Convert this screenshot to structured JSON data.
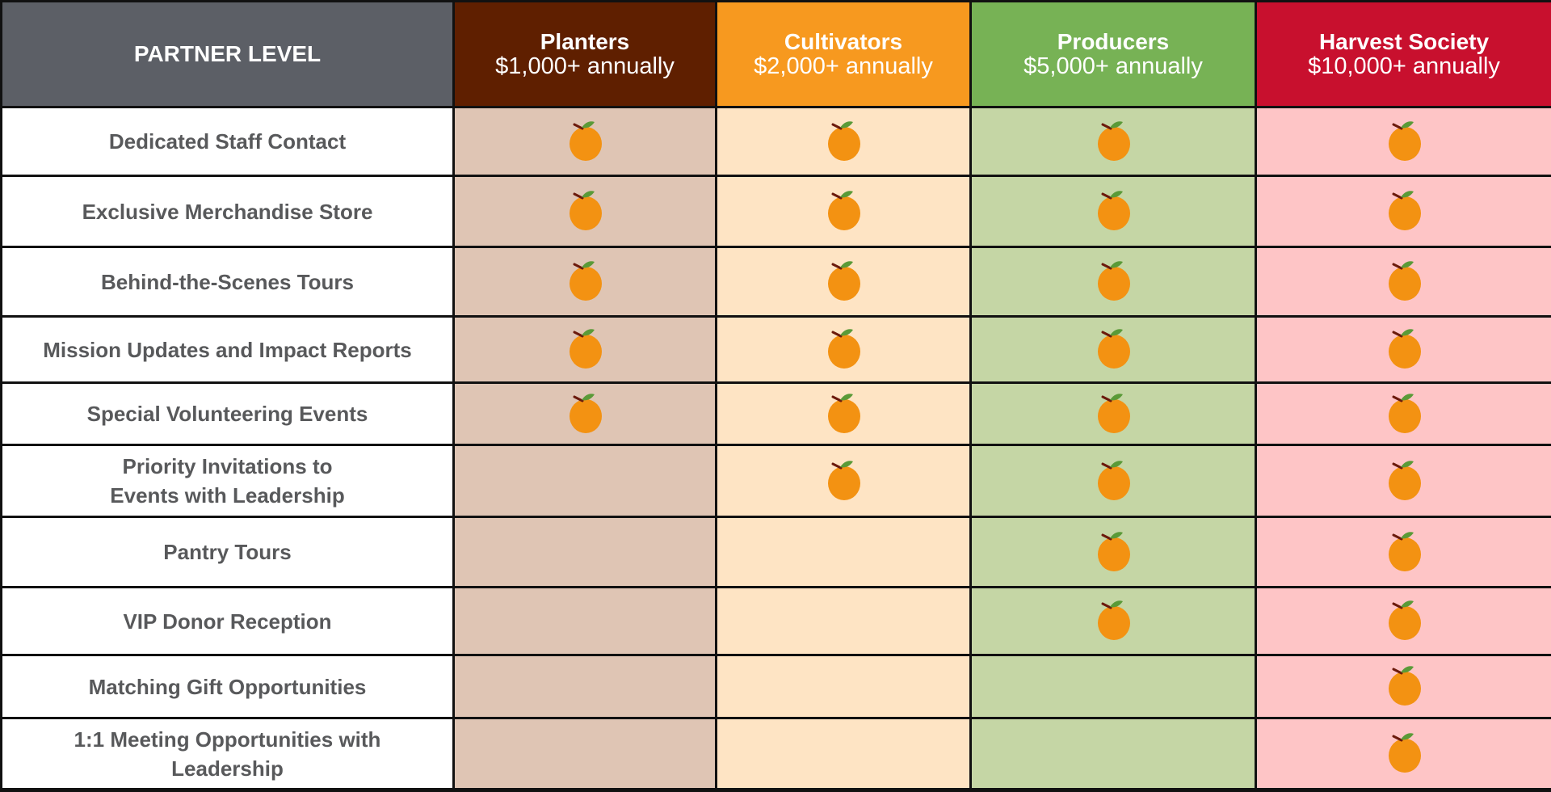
{
  "header": {
    "title": "PARTNER LEVEL",
    "levels": [
      {
        "name": "Planters",
        "amount": "$1,000+ annually",
        "header_color": "#5f1f00",
        "cell_color": "#dfc5b4"
      },
      {
        "name": "Cultivators",
        "amount": "$2,000+ annually",
        "header_color": "#f7991f",
        "cell_color": "#fee4c4"
      },
      {
        "name": "Producers",
        "amount": "$5,000+ annually",
        "header_color": "#77b255",
        "cell_color": "#c5d6a5"
      },
      {
        "name": "Harvest Society",
        "amount": "$10,000+ annually",
        "header_color": "#c8102e",
        "cell_color": "#fec5c6"
      }
    ]
  },
  "benefit_icon": "orange-fruit-icon",
  "benefits": [
    {
      "label": "Dedicated Staff Contact",
      "included": [
        true,
        true,
        true,
        true
      ]
    },
    {
      "label": "Exclusive Merchandise Store",
      "included": [
        true,
        true,
        true,
        true
      ]
    },
    {
      "label": "Behind-the-Scenes Tours",
      "included": [
        true,
        true,
        true,
        true
      ]
    },
    {
      "label": "Mission Updates and Impact Reports",
      "included": [
        true,
        true,
        true,
        true
      ]
    },
    {
      "label": "Special Volunteering Events",
      "included": [
        true,
        true,
        true,
        true
      ]
    },
    {
      "label": "Priority Invitations to\nEvents with Leadership",
      "included": [
        false,
        true,
        true,
        true
      ]
    },
    {
      "label": "Pantry Tours",
      "included": [
        false,
        false,
        true,
        true
      ]
    },
    {
      "label": "VIP Donor Reception",
      "included": [
        false,
        false,
        true,
        true
      ]
    },
    {
      "label": "Matching Gift Opportunities",
      "included": [
        false,
        false,
        false,
        true
      ]
    },
    {
      "label": "1:1 Meeting Opportunities with\nLeadership",
      "included": [
        false,
        false,
        false,
        true
      ]
    }
  ]
}
